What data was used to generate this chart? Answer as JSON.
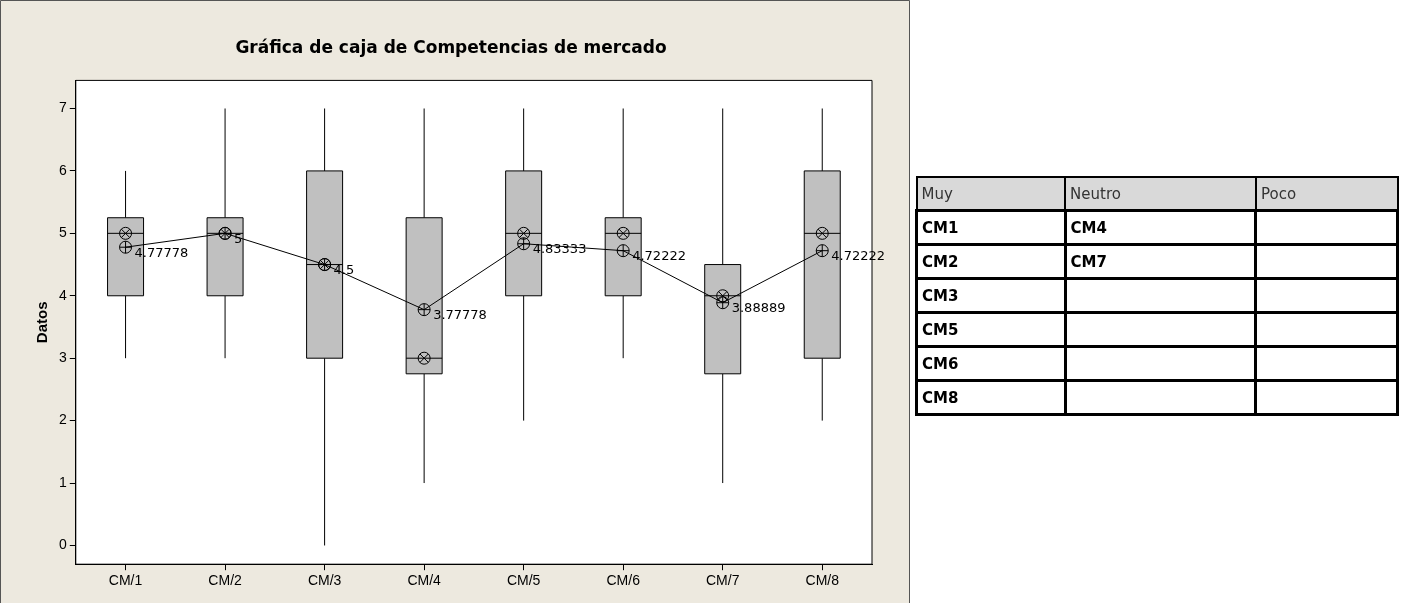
{
  "chart_data": [
    {
      "type": "box",
      "title": "Gráfica de caja de Competencias de mercado",
      "ylabel": "Datos",
      "categories": [
        "CM/1",
        "CM/2",
        "CM/3",
        "CM/4",
        "CM/5",
        "CM/6",
        "CM/7",
        "CM/8"
      ],
      "boxes": [
        {
          "low": 3,
          "q1": 4,
          "median": 5,
          "q3": 5.25,
          "high": 6
        },
        {
          "low": 3,
          "q1": 4,
          "median": 5,
          "q3": 5.25,
          "high": 7
        },
        {
          "low": 0,
          "q1": 3,
          "median": 4.5,
          "q3": 6,
          "high": 7
        },
        {
          "low": 1,
          "q1": 2.75,
          "median": 3,
          "q3": 5.25,
          "high": 7
        },
        {
          "low": 2,
          "q1": 4,
          "median": 5,
          "q3": 6,
          "high": 7
        },
        {
          "low": 3,
          "q1": 4,
          "median": 5,
          "q3": 5.25,
          "high": 7
        },
        {
          "low": 1,
          "q1": 2.75,
          "median": 4,
          "q3": 4.5,
          "high": 7
        },
        {
          "low": 2,
          "q1": 3,
          "median": 5,
          "q3": 6,
          "high": 7
        }
      ],
      "series": [
        {
          "type": "line",
          "color": "#000000",
          "marker": "circle",
          "values": [
            4.77778,
            5,
            4.5,
            3.77778,
            4.83333,
            4.72222,
            3.88889,
            4.72222
          ],
          "value_labels": [
            "4.77778",
            "5",
            "4.5",
            "3.77778",
            "4.83333",
            "4.72222",
            "3.88889",
            "4.72222"
          ]
        },
        {
          "type": "scatter",
          "color": "#000000",
          "marker": "cross",
          "values": [
            5,
            5,
            4.5,
            3,
            5,
            5,
            4,
            5
          ]
        }
      ],
      "color": "#c0c0c0",
      "ylim": [
        -0.3,
        7.45
      ],
      "yticks": [
        0,
        1,
        2,
        3,
        4,
        5,
        6,
        7
      ],
      "grid": false,
      "legend": false
    },
    {
      "type": "other",
      "categories": [
        "Muy",
        "Neutro",
        "Poco"
      ],
      "cell_labels": [
        [
          "CM1",
          "CM4",
          null
        ],
        [
          "CM2",
          "CM7",
          null
        ],
        [
          "CM3",
          null,
          null
        ],
        [
          "CM5",
          null,
          null
        ],
        [
          "CM6",
          null,
          null
        ],
        [
          "CM8",
          null,
          null
        ]
      ]
    }
  ]
}
